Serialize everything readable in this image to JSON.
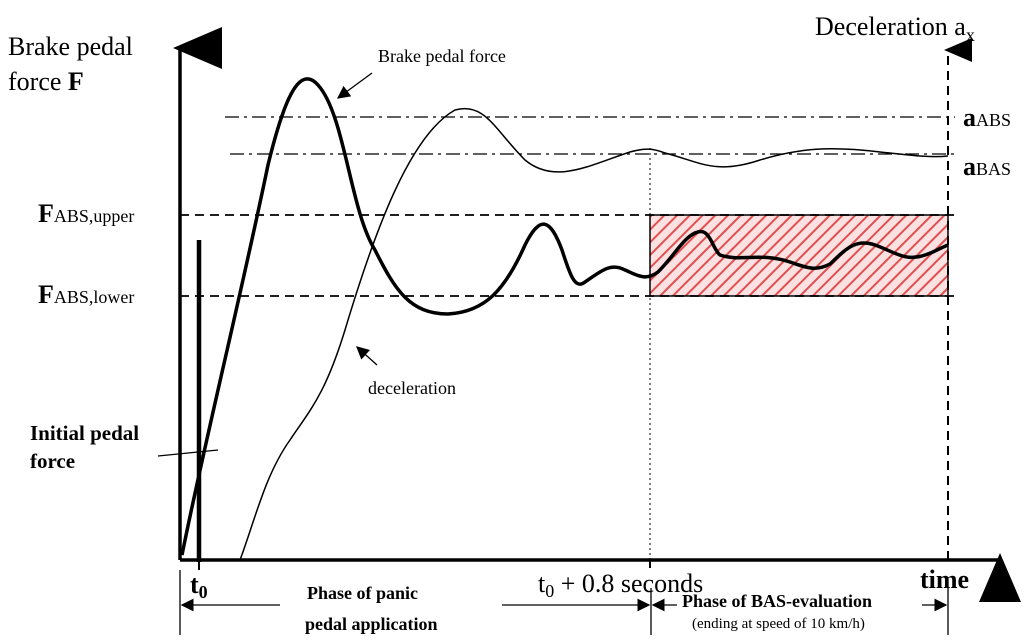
{
  "labels": {
    "left_axis_title_1": "Brake pedal",
    "left_axis_title_2": "force ",
    "left_axis_title_F": "F",
    "right_axis_title": "Deceleration a",
    "right_axis_sub": "x",
    "brake_pedal_force": "Brake pedal force",
    "deceleration": "deceleration",
    "a_abs_main": "a",
    "a_abs_sub": "ABS",
    "a_bas_main": "a",
    "a_bas_sub": "BAS",
    "f_upper_main": "F",
    "f_upper_sub": "ABS,upper",
    "f_lower_main": "F",
    "f_lower_sub": "ABS,lower",
    "initial_1": "Initial pedal",
    "initial_2": "force",
    "t0_main": "t",
    "t0_sub": "0",
    "t08_main": "t",
    "t08_sub": "0",
    "t08_rest": " + 0.8 seconds",
    "time": "time",
    "phase1_1": "Phase of panic",
    "phase1_2": "pedal application",
    "phase2_1": "Phase of BAS-evaluation",
    "phase2_2": "(ending at speed of 10 km/h)"
  },
  "colors": {
    "hatch": "#e05050",
    "line": "#000000"
  }
}
